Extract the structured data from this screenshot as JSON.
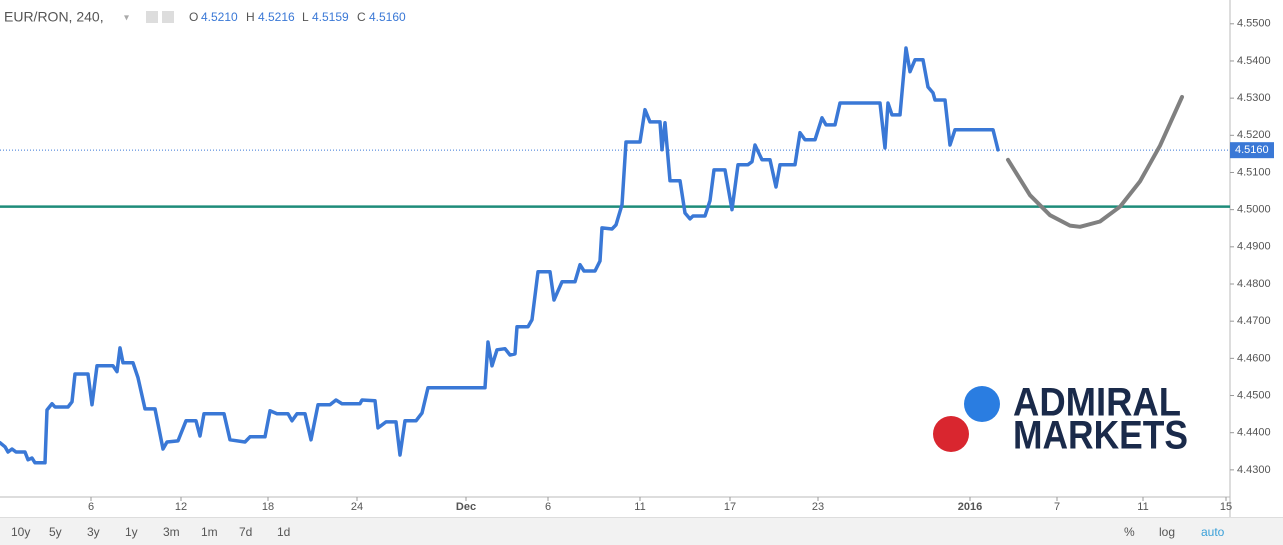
{
  "header": {
    "symbol": "EUR/RON, 240,",
    "o_label": "O",
    "o": "4.5210",
    "h_label": "H",
    "h": "4.5216",
    "l_label": "L",
    "l": "4.5159",
    "c_label": "C",
    "c": "4.5160"
  },
  "chart_data": {
    "type": "line",
    "x": [
      0,
      0.5,
      0.8,
      1.2,
      1.6,
      2.5,
      2.8,
      3.2,
      3.5,
      4.5,
      4.7,
      5.2,
      5.5,
      6.8,
      7.2,
      7.5,
      8.8,
      9.2,
      9.7,
      11.3,
      11.7,
      12.0,
      12.3,
      13.3,
      13.8,
      14.5,
      15.5,
      16.3,
      16.7,
      17.8,
      18.6,
      19.6,
      20.0,
      20.4,
      22.4,
      23.0,
      24.5,
      25.0,
      26.5,
      27.0,
      27.7,
      28.8,
      29.2,
      29.7,
      30.5,
      31.1,
      31.8,
      33.0,
      33.6,
      34.2,
      36.0,
      36.2,
      37.5,
      37.8,
      38.6,
      39.6,
      40.0,
      40.5,
      41.6,
      42.2,
      42.8,
      48.5,
      48.8,
      49.2,
      49.7,
      50.5,
      51.0,
      51.5,
      51.7,
      52.8,
      53.2,
      53.8,
      55.0,
      55.4,
      56.2,
      57.5,
      58.0,
      58.4,
      59.5,
      60.0,
      60.2,
      61.2,
      61.6,
      62.2,
      62.6,
      64.0,
      64.5,
      65.0,
      66.0,
      66.2,
      66.5,
      67.0,
      68.0,
      68.5,
      69.0,
      69.3,
      70.5,
      71.0,
      71.4,
      72.5,
      73.2,
      73.8,
      74.8,
      75.2,
      75.5,
      76.2,
      77.0,
      77.6,
      78.0,
      79.5,
      80.0,
      80.5,
      81.5,
      82.2,
      82.6,
      83.5,
      84.0,
      88.0,
      88.5,
      88.8,
      89.2,
      90.0,
      90.6,
      91.0,
      91.5,
      92.3,
      92.8,
      93.3,
      93.5,
      94.5,
      95.0,
      95.5,
      99.3,
      99.8
    ],
    "series": [
      {
        "color": "#3a78d6",
        "values": [
          4.4373,
          4.4362,
          4.4348,
          4.4356,
          4.4348,
          4.4348,
          4.4327,
          4.4332,
          4.4319,
          4.4319,
          4.4461,
          4.4478,
          4.4469,
          4.4469,
          4.4483,
          4.4558,
          4.4558,
          4.4475,
          4.458,
          4.458,
          4.4564,
          4.4628,
          4.4588,
          4.4588,
          4.4548,
          4.4464,
          4.4464,
          4.4356,
          4.4375,
          4.4378,
          4.4432,
          4.4432,
          4.4391,
          4.4451,
          4.4451,
          4.4381,
          4.4375,
          4.4389,
          4.4389,
          4.4459,
          4.4451,
          4.4451,
          4.4432,
          4.4451,
          4.4451,
          4.4381,
          4.4475,
          4.4475,
          4.4488,
          4.4478,
          4.4478,
          4.4488,
          4.4486,
          4.4413,
          4.4429,
          4.4429,
          4.434,
          4.4432,
          4.4432,
          4.4453,
          4.4521,
          4.4521,
          4.4644,
          4.458,
          4.4623,
          4.4626,
          4.4609,
          4.4612,
          4.4685,
          4.4685,
          4.4704,
          4.4833,
          4.4833,
          4.4757,
          4.4806,
          4.4806,
          4.4852,
          4.4835,
          4.4835,
          4.4862,
          4.4951,
          4.4948,
          4.4959,
          4.5013,
          4.5182,
          4.5182,
          4.5269,
          4.5236,
          4.5236,
          4.5161,
          4.5234,
          4.5078,
          4.5078,
          4.4991,
          4.4975,
          4.4983,
          4.4983,
          4.5024,
          4.5107,
          4.5107,
          4.5,
          4.5121,
          4.5121,
          4.5129,
          4.5174,
          4.5134,
          4.5134,
          4.5061,
          4.5121,
          4.5121,
          4.5207,
          4.5188,
          4.5188,
          4.5247,
          4.5228,
          4.5228,
          4.5287,
          4.5287,
          4.5166,
          4.5287,
          4.5255,
          4.5255,
          4.5435,
          4.5371,
          4.5403,
          4.5403,
          4.533,
          4.5314,
          4.5295,
          4.5295,
          4.5174,
          4.5215,
          4.5215,
          4.5161
        ]
      }
    ],
    "forecast": {
      "color": "#808080",
      "x": [
        100.8,
        103,
        105,
        107,
        108,
        110,
        112,
        114,
        116,
        118.2
      ],
      "values": [
        4.5134,
        4.5039,
        4.4985,
        4.4957,
        4.4954,
        4.4968,
        4.5008,
        4.5076,
        4.5172,
        4.5303
      ]
    },
    "hline": {
      "value": 4.5008,
      "color": "#1e8c7a"
    },
    "last_price": 4.516,
    "last_price_label": "4.5160",
    "xlim": [
      0,
      123
    ],
    "ylim": [
      4.4227,
      4.5564
    ],
    "xticks": [
      {
        "value": 9.1,
        "label": "6"
      },
      {
        "value": 18.1,
        "label": "12"
      },
      {
        "value": 26.8,
        "label": "18"
      },
      {
        "value": 35.7,
        "label": "24"
      },
      {
        "value": 46.6,
        "label": "Dec"
      },
      {
        "value": 54.8,
        "label": "6"
      },
      {
        "value": 64.0,
        "label": "11"
      },
      {
        "value": 73.0,
        "label": "17"
      },
      {
        "value": 81.8,
        "label": "23"
      },
      {
        "value": 97.0,
        "label": "2016"
      },
      {
        "value": 105.7,
        "label": "7"
      },
      {
        "value": 114.3,
        "label": "11"
      },
      {
        "value": 122.6,
        "label": "15"
      }
    ],
    "yticks": [
      {
        "value": 4.43,
        "label": "4.4300"
      },
      {
        "value": 4.44,
        "label": "4.4400"
      },
      {
        "value": 4.45,
        "label": "4.4500"
      },
      {
        "value": 4.46,
        "label": "4.4600"
      },
      {
        "value": 4.47,
        "label": "4.4700"
      },
      {
        "value": 4.48,
        "label": "4.4800"
      },
      {
        "value": 4.49,
        "label": "4.4900"
      },
      {
        "value": 4.5,
        "label": "4.5000"
      },
      {
        "value": 4.51,
        "label": "4.5100"
      },
      {
        "value": 4.52,
        "label": "4.5200"
      },
      {
        "value": 4.53,
        "label": "4.5300"
      },
      {
        "value": 4.54,
        "label": "4.5400"
      },
      {
        "value": 4.55,
        "label": "4.5500"
      }
    ]
  },
  "logo": {
    "line1": "ADMIRAL",
    "line2": "MARKETS"
  },
  "toolbar": {
    "ranges": [
      "10y",
      "5y",
      "3y",
      "1y",
      "3m",
      "1m",
      "7d",
      "1d"
    ],
    "percent": "%",
    "log": "log",
    "auto": "auto"
  }
}
